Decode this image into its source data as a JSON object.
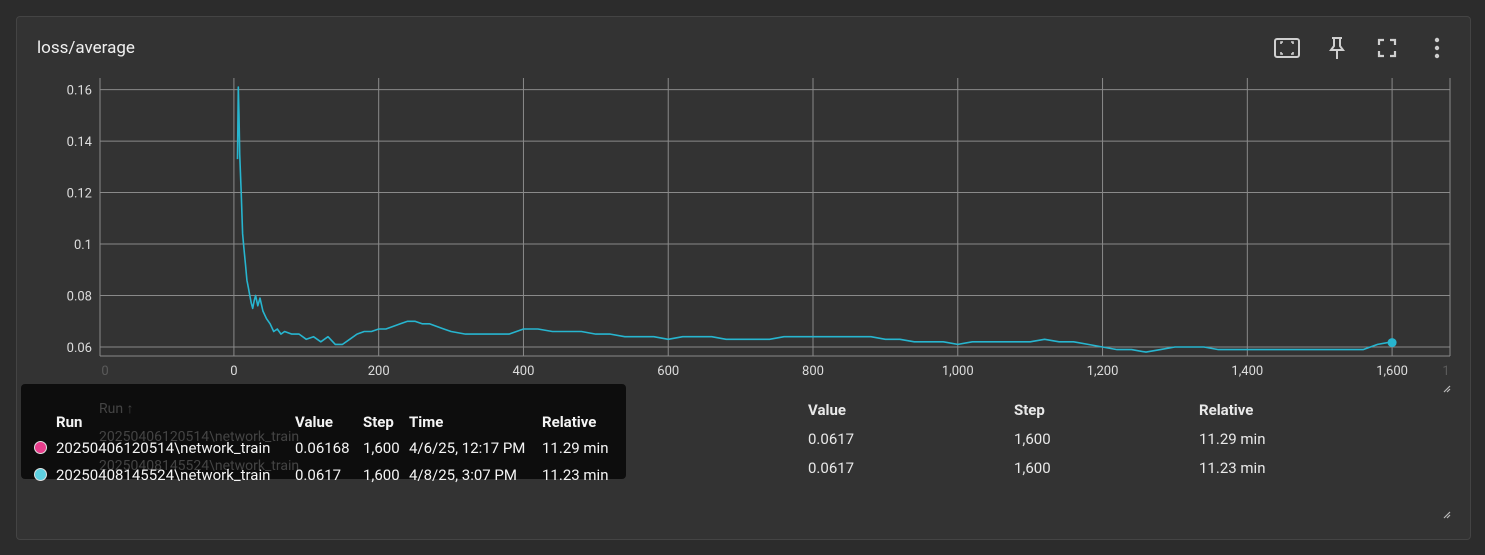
{
  "card": {
    "title": "loss/average"
  },
  "toolbar": {
    "buttons": [
      {
        "name": "fit-domain-icon"
      },
      {
        "name": "pin-icon"
      },
      {
        "name": "fullscreen-icon"
      },
      {
        "name": "more-vert-icon"
      }
    ]
  },
  "chart_data": {
    "type": "line",
    "title": "loss/average",
    "xlabel": "",
    "ylabel": "",
    "xlim": [
      -185,
      1680
    ],
    "ylim": [
      0.0565,
      0.1645
    ],
    "xticks": [
      0,
      200,
      400,
      600,
      800,
      1000,
      1200,
      1400,
      1600
    ],
    "xtick_labels": [
      "0",
      "200",
      "400",
      "600",
      "800",
      "1,000",
      "1,200",
      "1,400",
      "1,600"
    ],
    "ghost_tick_labels": [
      "0",
      "1"
    ],
    "yticks": [
      0.06,
      0.08,
      0.1,
      0.12,
      0.14,
      0.16
    ],
    "ytick_labels": [
      "0.06",
      "0.08",
      "0.1",
      "0.12",
      "0.14",
      "0.16"
    ],
    "grid": true,
    "colors": {
      "series": "#27b5cf",
      "grid": "#8a8a8a"
    },
    "series": [
      {
        "name": "20250408145524\\network_train",
        "color": "#27b5cf",
        "x": [
          5,
          6,
          7,
          8,
          10,
          12,
          14,
          16,
          18,
          20,
          22,
          24,
          26,
          28,
          30,
          33,
          36,
          40,
          45,
          50,
          55,
          60,
          65,
          70,
          80,
          90,
          100,
          110,
          120,
          130,
          140,
          150,
          160,
          170,
          180,
          190,
          200,
          210,
          220,
          230,
          240,
          250,
          260,
          270,
          280,
          290,
          300,
          320,
          340,
          360,
          380,
          400,
          420,
          440,
          460,
          480,
          500,
          520,
          540,
          560,
          580,
          600,
          620,
          640,
          660,
          680,
          700,
          720,
          740,
          760,
          780,
          800,
          820,
          840,
          860,
          880,
          900,
          920,
          940,
          960,
          980,
          1000,
          1020,
          1040,
          1060,
          1080,
          1100,
          1120,
          1140,
          1160,
          1180,
          1200,
          1220,
          1240,
          1260,
          1280,
          1300,
          1320,
          1340,
          1360,
          1380,
          1400,
          1420,
          1440,
          1460,
          1480,
          1500,
          1520,
          1540,
          1560,
          1580,
          1600
        ],
        "y": [
          0.133,
          0.161,
          0.15,
          0.135,
          0.12,
          0.104,
          0.098,
          0.092,
          0.086,
          0.083,
          0.08,
          0.077,
          0.075,
          0.078,
          0.08,
          0.076,
          0.079,
          0.074,
          0.071,
          0.069,
          0.066,
          0.067,
          0.065,
          0.066,
          0.065,
          0.065,
          0.063,
          0.064,
          0.062,
          0.064,
          0.061,
          0.061,
          0.063,
          0.065,
          0.066,
          0.066,
          0.067,
          0.067,
          0.068,
          0.069,
          0.07,
          0.07,
          0.069,
          0.069,
          0.068,
          0.067,
          0.066,
          0.065,
          0.065,
          0.065,
          0.065,
          0.067,
          0.067,
          0.066,
          0.066,
          0.066,
          0.065,
          0.065,
          0.064,
          0.064,
          0.064,
          0.063,
          0.064,
          0.064,
          0.064,
          0.063,
          0.063,
          0.063,
          0.063,
          0.064,
          0.064,
          0.064,
          0.064,
          0.064,
          0.064,
          0.064,
          0.063,
          0.063,
          0.062,
          0.062,
          0.062,
          0.061,
          0.062,
          0.062,
          0.062,
          0.062,
          0.062,
          0.063,
          0.062,
          0.062,
          0.061,
          0.06,
          0.059,
          0.059,
          0.058,
          0.059,
          0.06,
          0.06,
          0.06,
          0.059,
          0.059,
          0.059,
          0.059,
          0.059,
          0.059,
          0.059,
          0.059,
          0.059,
          0.059,
          0.059,
          0.061,
          0.062
        ]
      }
    ],
    "highlight_point": {
      "x": 1600,
      "y": 0.0617
    }
  },
  "tooltip": {
    "ghost_header": "Run ↑",
    "ghost_rows": [
      "20250406120514\\network_train",
      "20250408145524\\network_train"
    ],
    "headers": {
      "run": "Run",
      "value": "Value",
      "step": "Step",
      "time": "Time",
      "relative": "Relative"
    },
    "rows": [
      {
        "color": "#e83e8c",
        "run": "20250406120514\\network_train",
        "value": "0.06168",
        "step": "1,600",
        "time": "4/6/25, 12:17 PM",
        "relative": "11.29 min"
      },
      {
        "color": "#5ed0e0",
        "run": "20250408145524\\network_train",
        "value": "0.0617",
        "step": "1,600",
        "time": "4/8/25, 3:07 PM",
        "relative": "11.23 min"
      }
    ]
  },
  "run_table": {
    "headers": {
      "value": "Value",
      "step": "Step",
      "relative": "Relative"
    },
    "rows": [
      {
        "value": "0.0617",
        "step": "1,600",
        "relative": "11.29 min"
      },
      {
        "value": "0.0617",
        "step": "1,600",
        "relative": "11.23 min"
      }
    ]
  }
}
